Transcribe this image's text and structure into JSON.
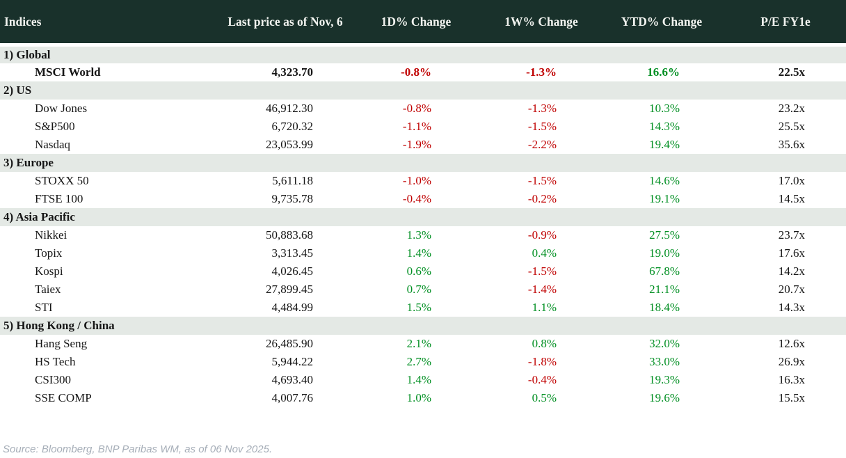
{
  "table": {
    "title": "Indices",
    "columns": [
      "Indices",
      "Last price as of Nov, 6",
      "1D% Change",
      "1W% Change",
      "YTD% Change",
      "P/E FY1e"
    ],
    "sections": [
      {
        "label": "1) Global",
        "rows": [
          {
            "name": "MSCI World",
            "bold": true,
            "values": [
              "4,323.70",
              "-0.8%",
              "-1.3%",
              "16.6%",
              "22.5x"
            ]
          }
        ]
      },
      {
        "label": "2) US",
        "rows": [
          {
            "name": "Dow Jones",
            "bold": false,
            "values": [
              "46,912.30",
              "-0.8%",
              "-1.3%",
              "10.3%",
              "23.2x"
            ]
          },
          {
            "name": "S&P500",
            "bold": false,
            "values": [
              "6,720.32",
              "-1.1%",
              "-1.5%",
              "14.3%",
              "25.5x"
            ]
          },
          {
            "name": "Nasdaq",
            "bold": false,
            "values": [
              "23,053.99",
              "-1.9%",
              "-2.2%",
              "19.4%",
              "35.6x"
            ]
          }
        ]
      },
      {
        "label": "3) Europe",
        "rows": [
          {
            "name": "STOXX 50",
            "bold": false,
            "values": [
              "5,611.18",
              "-1.0%",
              "-1.5%",
              "14.6%",
              "17.0x"
            ]
          },
          {
            "name": "FTSE 100",
            "bold": false,
            "values": [
              "9,735.78",
              "-0.4%",
              "-0.2%",
              "19.1%",
              "14.5x"
            ]
          }
        ]
      },
      {
        "label": "4) Asia Pacific",
        "rows": [
          {
            "name": "Nikkei",
            "bold": false,
            "values": [
              "50,883.68",
              "1.3%",
              "-0.9%",
              "27.5%",
              "23.7x"
            ]
          },
          {
            "name": "Topix",
            "bold": false,
            "values": [
              "3,313.45",
              "1.4%",
              "0.4%",
              "19.0%",
              "17.6x"
            ]
          },
          {
            "name": "Kospi",
            "bold": false,
            "values": [
              "4,026.45",
              "0.6%",
              "-1.5%",
              "67.8%",
              "14.2x"
            ]
          },
          {
            "name": "Taiex",
            "bold": false,
            "values": [
              "27,899.45",
              "0.7%",
              "-1.4%",
              "21.1%",
              "20.7x"
            ]
          },
          {
            "name": "STI",
            "bold": false,
            "values": [
              "4,484.99",
              "1.5%",
              "1.1%",
              "18.4%",
              "14.3x"
            ]
          }
        ]
      },
      {
        "label": "5) Hong Kong / China",
        "rows": [
          {
            "name": "Hang Seng",
            "bold": false,
            "values": [
              "26,485.90",
              "2.1%",
              "0.8%",
              "32.0%",
              "12.6x"
            ]
          },
          {
            "name": "HS Tech",
            "bold": false,
            "values": [
              "5,944.22",
              "2.7%",
              "-1.8%",
              "33.0%",
              "26.9x"
            ]
          },
          {
            "name": "CSI300",
            "bold": false,
            "values": [
              "4,693.40",
              "1.4%",
              "-0.4%",
              "19.3%",
              "16.3x"
            ]
          },
          {
            "name": "SSE COMP",
            "bold": false,
            "values": [
              "4,007.76",
              "1.0%",
              "0.5%",
              "19.6%",
              "15.5x"
            ]
          }
        ]
      }
    ]
  },
  "footer": {
    "source": "Source: Bloomberg, BNP Paribas WM, as of 06 Nov 2025."
  },
  "colors": {
    "header_bg": "#19312b",
    "section_bg": "#e4e9e5",
    "negative": "#c00000",
    "positive": "#008f22"
  }
}
